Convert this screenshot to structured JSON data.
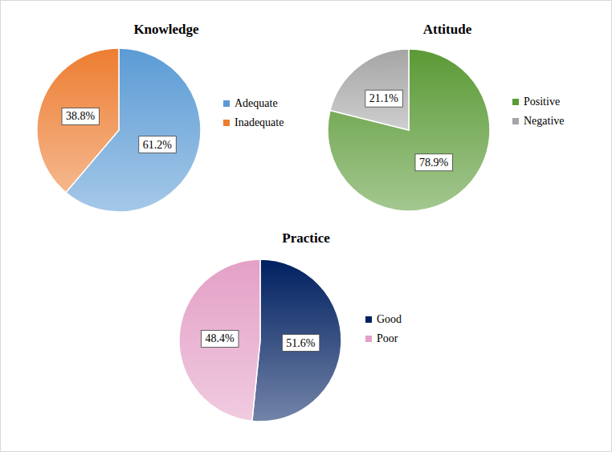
{
  "chart_data": [
    {
      "type": "pie",
      "title": "Knowledge",
      "categories": [
        "Adequate",
        "Inadequate"
      ],
      "values": [
        61.2,
        38.8
      ],
      "value_labels": [
        "61.2%",
        "38.8%"
      ],
      "colors": [
        "#5b9bd5",
        "#ed7d31"
      ],
      "data_labels": true,
      "legend": "right"
    },
    {
      "type": "pie",
      "title": "Attitude",
      "categories": [
        "Positive",
        "Negative"
      ],
      "values": [
        78.9,
        21.1
      ],
      "value_labels": [
        "78.9%",
        "21.1%"
      ],
      "colors": [
        "#5a9a35",
        "#a5a5a5"
      ],
      "data_labels": true,
      "legend": "right"
    },
    {
      "type": "pie",
      "title": "Practice",
      "categories": [
        "Good",
        "Poor"
      ],
      "values": [
        51.6,
        48.4
      ],
      "value_labels": [
        "51.6%",
        "48.4%"
      ],
      "colors": [
        "#002060",
        "#e4a0c6"
      ],
      "data_labels": true,
      "legend": "right"
    }
  ]
}
